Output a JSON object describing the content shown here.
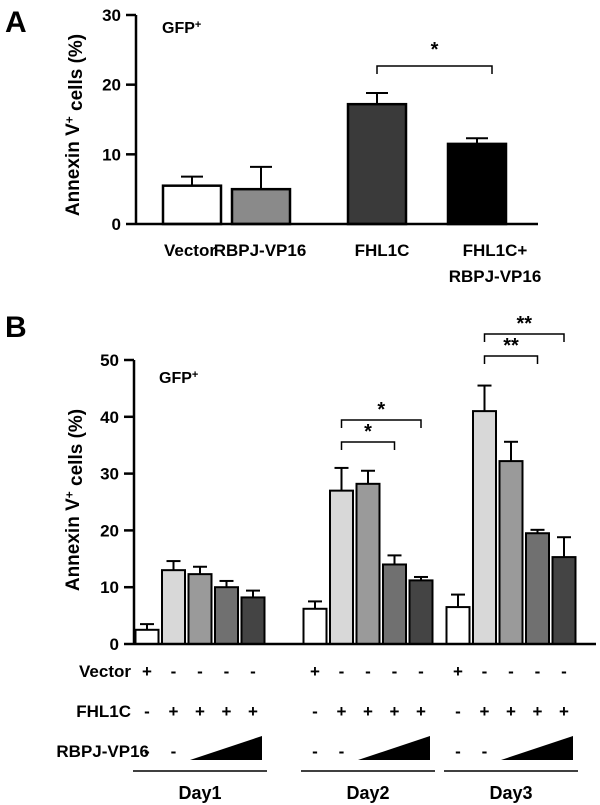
{
  "chart_data": [
    {
      "panel_label": "A",
      "type": "bar",
      "annotation": "GFP+",
      "ylabel": "Annexin V+ cells (%)",
      "ylim": [
        0,
        30
      ],
      "yticks": [
        0,
        10,
        20,
        30
      ],
      "categories": [
        [
          "Vector"
        ],
        [
          "RBPJ-VP16"
        ],
        [
          "FHL1C"
        ],
        [
          "FHL1C+",
          "RBPJ-VP16"
        ]
      ],
      "values": [
        5.5,
        5.0,
        17.2,
        11.5
      ],
      "errors": [
        1.3,
        3.2,
        1.6,
        0.8
      ],
      "colors": [
        "#ffffff",
        "#8a8a8a",
        "#3a3a3a",
        "#000000"
      ],
      "significance": [
        {
          "from": 2,
          "to": 3,
          "label": "*"
        }
      ]
    },
    {
      "panel_label": "B",
      "type": "bar",
      "annotation": "GFP+",
      "ylabel": "Annexin V+ cells (%)",
      "ylim": [
        0,
        50
      ],
      "yticks": [
        0,
        10,
        20,
        30,
        40,
        50
      ],
      "groups": [
        "Day1",
        "Day2",
        "Day3"
      ],
      "series_colors": [
        "#ffffff",
        "#d8d8d8",
        "#9a9a9a",
        "#707070",
        "#444444"
      ],
      "values": [
        [
          2.5,
          13.0,
          12.3,
          10.0,
          8.2
        ],
        [
          6.2,
          27.0,
          28.2,
          14.0,
          11.2
        ],
        [
          6.5,
          41.0,
          32.2,
          19.5,
          15.3
        ]
      ],
      "errors": [
        [
          1.0,
          1.6,
          1.3,
          1.1,
          1.2
        ],
        [
          1.3,
          4.0,
          2.3,
          1.6,
          0.6
        ],
        [
          2.2,
          4.5,
          3.4,
          0.6,
          3.5
        ]
      ],
      "significance": [
        [],
        [
          {
            "from": 1,
            "to": 3,
            "label": "*"
          },
          {
            "from": 1,
            "to": 4,
            "label": "*"
          }
        ],
        [
          {
            "from": 1,
            "to": 3,
            "label": "**"
          },
          {
            "from": 1,
            "to": 4,
            "label": "**"
          }
        ]
      ],
      "treatment_rows": [
        {
          "label": "Vector",
          "symbols": [
            "+",
            "-",
            "-",
            "-",
            "-"
          ]
        },
        {
          "label": "FHL1C",
          "symbols": [
            "-",
            "+",
            "+",
            "+",
            "+"
          ]
        },
        {
          "label": "RBPJ-VP16",
          "symbols": [
            "-",
            "-",
            "ramp",
            "ramp",
            "ramp"
          ]
        }
      ]
    }
  ]
}
